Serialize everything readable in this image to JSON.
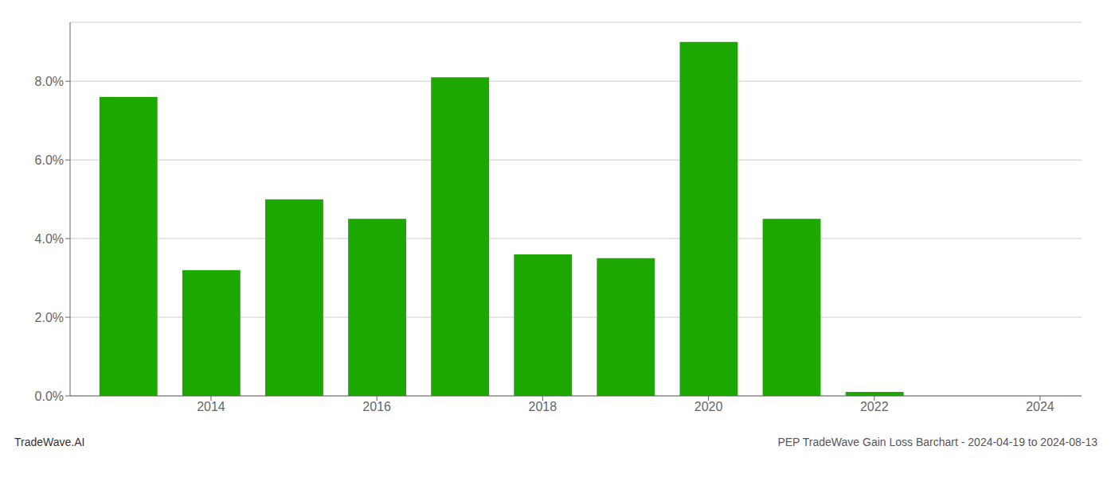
{
  "chart_data": {
    "type": "bar",
    "x": [
      2013,
      2014,
      2015,
      2016,
      2017,
      2018,
      2019,
      2020,
      2021,
      2022,
      2023
    ],
    "values": [
      0.076,
      0.032,
      0.05,
      0.045,
      0.081,
      0.036,
      0.035,
      0.09,
      0.045,
      0.001,
      0.0
    ],
    "color": "#1ca800",
    "xlim": [
      2012.3,
      2024.5
    ],
    "xticks": [
      2014,
      2016,
      2018,
      2020,
      2022,
      2024
    ],
    "ylim": [
      0,
      0.095
    ],
    "yticks": [
      {
        "value": 0.0,
        "label": "0.0%"
      },
      {
        "value": 0.02,
        "label": "2.0%"
      },
      {
        "value": 0.04,
        "label": "4.0%"
      },
      {
        "value": 0.06,
        "label": "6.0%"
      },
      {
        "value": 0.08,
        "label": "8.0%"
      }
    ],
    "grid": true,
    "annotations": [
      "TradeWave.AI",
      "PEP TradeWave Gain Loss Barchart - 2024-04-19 to 2024-08-13"
    ]
  }
}
